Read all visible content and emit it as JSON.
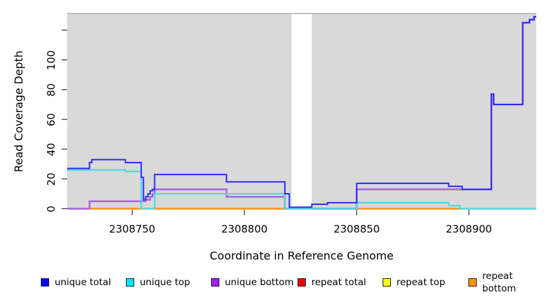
{
  "figure": {
    "panel_color": "#d9d9d9",
    "panel_top_edge_color": "#aeaeae",
    "tick_color": "#404040",
    "x_axis": {
      "title": "Coordinate in Reference Genome",
      "ticks": [
        2308750,
        2308800,
        2308850,
        2308900
      ],
      "tick_labels": [
        "2308750",
        "2308800",
        "2308850",
        "2308900"
      ]
    },
    "y_axis": {
      "title": "Read Coverage Depth",
      "ticks": [
        0,
        20,
        40,
        60,
        80,
        100,
        120
      ],
      "tick_labels": [
        "0",
        "20",
        "40",
        "60",
        "80",
        "100",
        ""
      ]
    }
  },
  "chart_data": {
    "type": "line",
    "style": "step",
    "title": "",
    "xlabel": "Coordinate in Reference Genome",
    "ylabel": "Read Coverage Depth",
    "xlim": [
      2308721,
      2308930
    ],
    "ylim": [
      0,
      132
    ],
    "grid": "off",
    "legend_position": "bottom",
    "no_data_gap": {
      "from": 2308821,
      "to": 2308830
    },
    "series": [
      {
        "name": "unique bottom",
        "color": "#aa66e2",
        "line_width": 2.6,
        "points": [
          [
            2308721,
            0
          ],
          [
            2308731,
            5
          ],
          [
            2308756,
            6
          ],
          [
            2308758,
            8
          ],
          [
            2308759,
            10
          ],
          [
            2308760,
            13
          ],
          [
            2308792,
            8
          ],
          [
            2308818,
            0
          ],
          [
            2308850,
            13
          ],
          [
            2308910,
            77
          ],
          [
            2308911,
            70
          ],
          [
            2308924,
            125
          ],
          [
            2308927,
            127
          ],
          [
            2308929,
            129
          ],
          [
            2308930,
            129
          ]
        ]
      },
      {
        "name": "unique top",
        "color": "#45dbe4",
        "line_width": 2.1,
        "points": [
          [
            2308721,
            26
          ],
          [
            2308747,
            25
          ],
          [
            2308754,
            0
          ],
          [
            2308760,
            10
          ],
          [
            2308818,
            0
          ],
          [
            2308850,
            4
          ],
          [
            2308891,
            2
          ],
          [
            2308896,
            0
          ],
          [
            2308930,
            0
          ]
        ]
      },
      {
        "name": "unique total",
        "color": "#2b2bf0",
        "line_width": 2.0,
        "points": [
          [
            2308721,
            27
          ],
          [
            2308731,
            31
          ],
          [
            2308732,
            33
          ],
          [
            2308747,
            31
          ],
          [
            2308754,
            21
          ],
          [
            2308755,
            6
          ],
          [
            2308756,
            8
          ],
          [
            2308757,
            10
          ],
          [
            2308758,
            12
          ],
          [
            2308759,
            13
          ],
          [
            2308760,
            23
          ],
          [
            2308792,
            18
          ],
          [
            2308818,
            10
          ],
          [
            2308820,
            1
          ],
          [
            2308830,
            3
          ],
          [
            2308837,
            4
          ],
          [
            2308850,
            17
          ],
          [
            2308891,
            15
          ],
          [
            2308897,
            13
          ],
          [
            2308910,
            77
          ],
          [
            2308911,
            70
          ],
          [
            2308924,
            125
          ],
          [
            2308927,
            127
          ],
          [
            2308929,
            129
          ],
          [
            2308930,
            129
          ]
        ]
      },
      {
        "name": "repeat total",
        "color": "#ee2222",
        "line_width": 2.0,
        "points": [
          [
            2308721,
            0
          ],
          [
            2308930,
            0
          ]
        ]
      },
      {
        "name": "repeat top",
        "color": "#ffff33",
        "line_width": 2.0,
        "points": [
          [
            2308721,
            0
          ],
          [
            2308930,
            0
          ]
        ]
      },
      {
        "name": "repeat bottom",
        "color": "#ff9412",
        "line_width": 2.2,
        "points": [
          [
            2308721,
            0
          ],
          [
            2308897,
            0
          ]
        ]
      }
    ],
    "baseline_blend_segments": [
      {
        "from": 2308721,
        "to": 2308731,
        "color": "#c85a85"
      },
      {
        "from": 2308731,
        "to": 2308818,
        "color": "#ff9412"
      },
      {
        "from": 2308818,
        "to": 2308850,
        "color": "#cf4f6f"
      },
      {
        "from": 2308850,
        "to": 2308897,
        "color": "#ff9412"
      },
      {
        "from": 2308897,
        "to": 2308930,
        "color": "#8fdc9b"
      }
    ]
  },
  "legend": {
    "items": [
      {
        "label": "unique total",
        "swatch": "#0000ee",
        "border": "#1d1d3a"
      },
      {
        "label": "unique top",
        "swatch": "#00e5ee",
        "border": "#1d1d3a"
      },
      {
        "label": "unique bottom",
        "swatch": "#a020f0",
        "border": "#1d1d3a"
      },
      {
        "label": "repeat total",
        "swatch": "#ee0000",
        "border": "#1d1d3a"
      },
      {
        "label": "repeat top",
        "swatch": "#ffff00",
        "border": "#1d1d3a"
      },
      {
        "label": "repeat bottom",
        "swatch": "#ff9500",
        "border": "#1d1d3a"
      }
    ]
  }
}
